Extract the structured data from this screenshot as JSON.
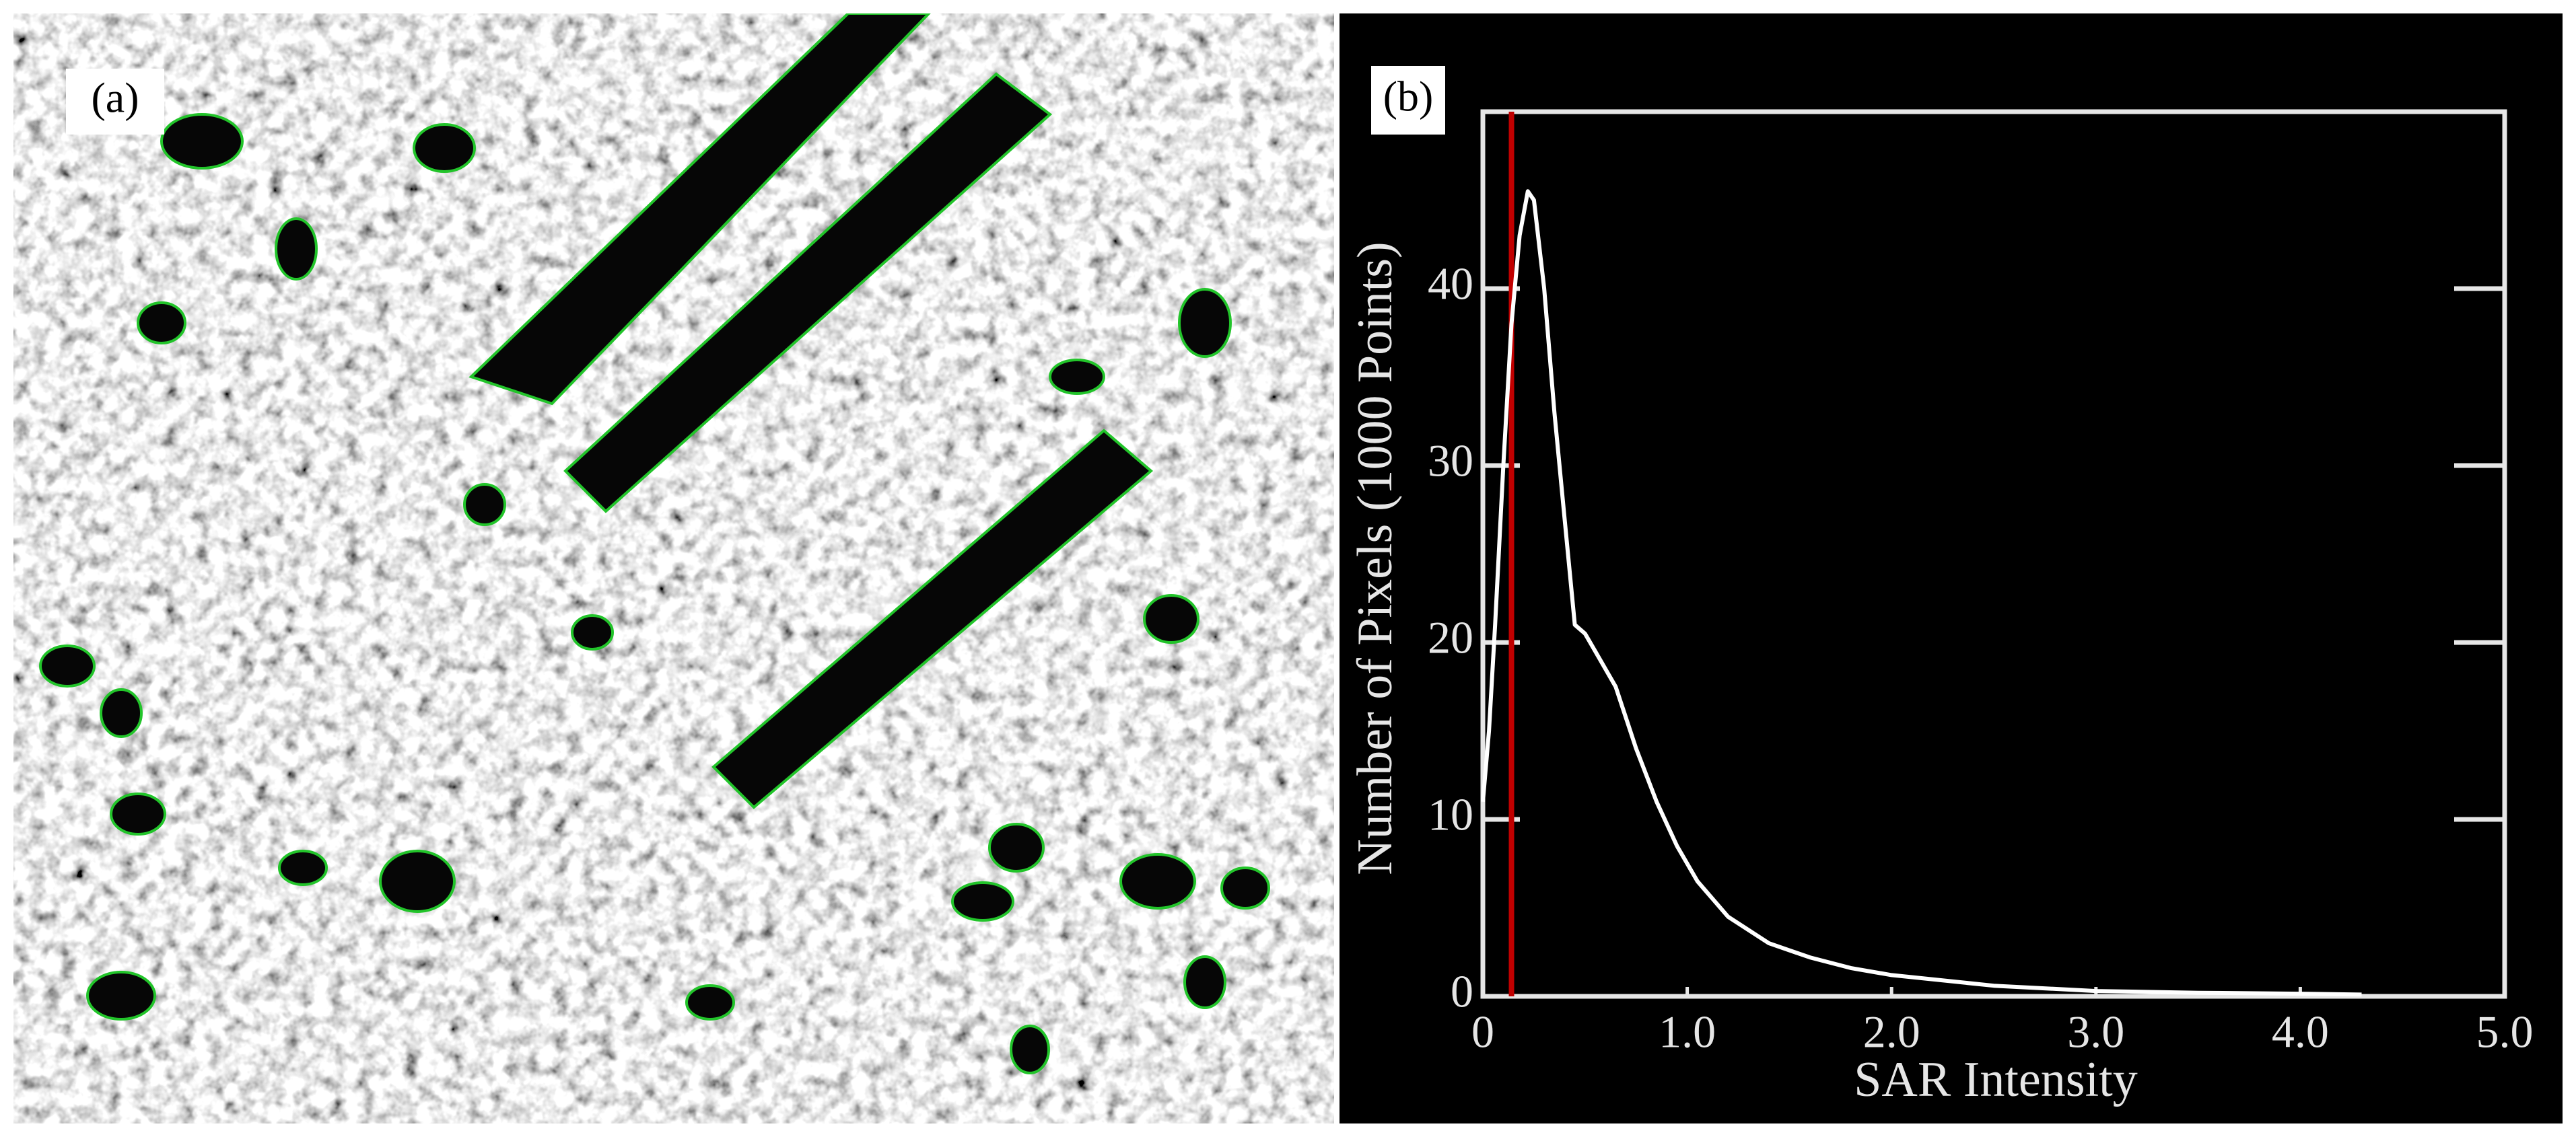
{
  "panel_a": {
    "label": "(a)"
  },
  "chart_data": {
    "type": "line",
    "panel_label": "(b)",
    "x_label": "SAR Intensity",
    "y_label": "Number of Pixels (1000 Points)",
    "x": [
      0,
      0.03,
      0.06,
      0.1,
      0.14,
      0.18,
      0.22,
      0.25,
      0.3,
      0.35,
      0.4,
      0.45,
      0.5,
      0.55,
      0.65,
      0.75,
      0.85,
      0.95,
      1.05,
      1.2,
      1.4,
      1.6,
      1.8,
      2.0,
      2.5,
      3.0,
      3.5,
      4.0,
      4.3
    ],
    "series": [
      {
        "color": "#ffffff",
        "values": [
          11,
          15,
          21,
          30,
          38,
          43,
          45.5,
          45,
          40,
          33,
          27,
          21,
          20.5,
          19.5,
          17.5,
          14,
          11,
          8.5,
          6.5,
          4.5,
          3,
          2.2,
          1.6,
          1.2,
          0.6,
          0.3,
          0.2,
          0.15,
          0.1
        ]
      }
    ],
    "threshold": 0.14,
    "threshold_color": "#c00000",
    "xlim": [
      0,
      5
    ],
    "ylim": [
      0,
      50
    ],
    "xticks": [
      0,
      {
        "value": 1,
        "label": "1.0"
      },
      {
        "value": 2,
        "label": "2.0"
      },
      {
        "value": 3,
        "label": "3.0"
      },
      {
        "value": 4,
        "label": "4.0"
      },
      {
        "value": 5,
        "label": "5.0"
      }
    ],
    "yticks": [
      0,
      10,
      20,
      30,
      40
    ],
    "background": "#000000",
    "frame_color": "#e6e6e6"
  }
}
